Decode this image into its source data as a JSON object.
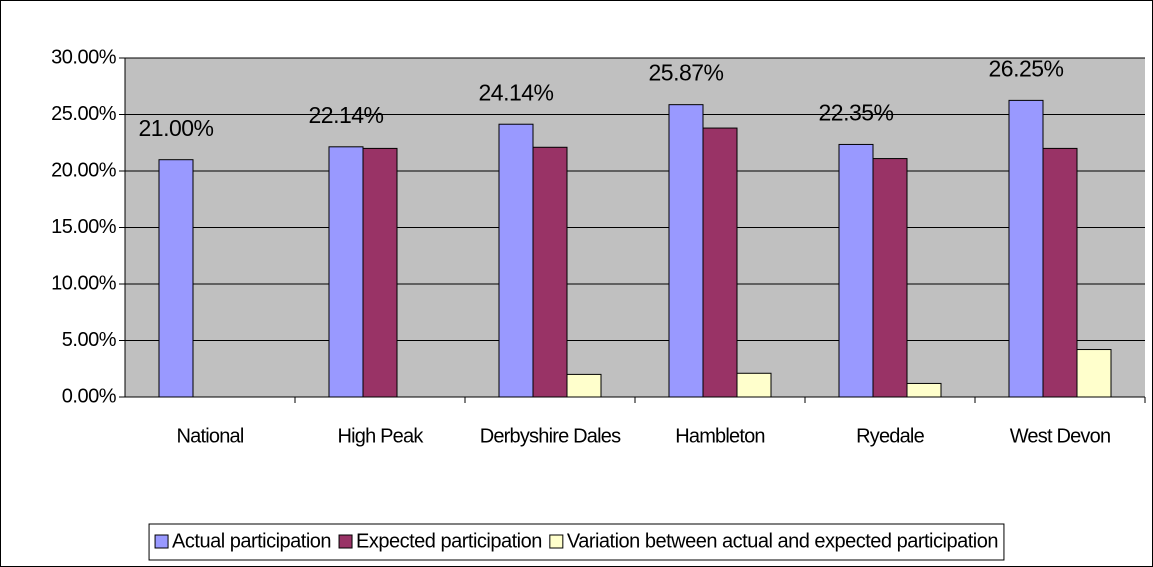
{
  "chart_data": {
    "type": "bar",
    "categories": [
      "National",
      "High Peak",
      "Derbyshire Dales",
      "Hambleton",
      "Ryedale",
      "West Devon"
    ],
    "series": [
      {
        "name": "Actual participation",
        "color": "#9999ff",
        "values": [
          21.0,
          22.14,
          24.14,
          25.87,
          22.35,
          26.25
        ],
        "value_labels": [
          "21.00%",
          "22.14%",
          "24.14%",
          "25.87%",
          "22.35%",
          "26.25%"
        ]
      },
      {
        "name": "Expected participation",
        "color": "#993366",
        "values": [
          null,
          22.0,
          22.1,
          23.8,
          21.1,
          22.0
        ]
      },
      {
        "name": "Variation between actual and expected participation",
        "color": "#ffffcc",
        "values": [
          null,
          null,
          2.0,
          2.1,
          1.2,
          4.2
        ]
      }
    ],
    "ylim": [
      0,
      30
    ],
    "yticks": [
      {
        "value": 0,
        "label": "0.00%"
      },
      {
        "value": 5,
        "label": "5.00%"
      },
      {
        "value": 10,
        "label": "10.00%"
      },
      {
        "value": 15,
        "label": "15.00%"
      },
      {
        "value": 20,
        "label": "20.00%"
      },
      {
        "value": 25,
        "label": "25.00%"
      },
      {
        "value": 30,
        "label": "30.00%"
      }
    ],
    "grid": true,
    "plot_background": "#c0c0c0",
    "legend": "bottom"
  }
}
